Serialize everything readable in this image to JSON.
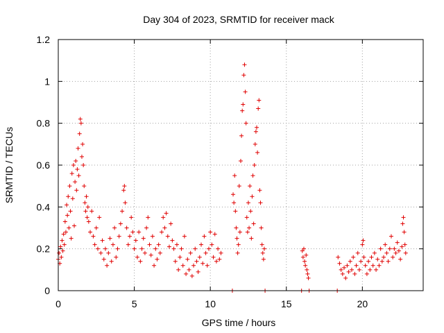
{
  "chart_data": {
    "type": "scatter",
    "title": "Day 304 of 2023, SRMTID for receiver mack",
    "xlabel": "GPS time / hours",
    "ylabel": "SRMTID / TECUs",
    "xlim": [
      0,
      24
    ],
    "ylim": [
      0,
      1.2
    ],
    "xticks": [
      0,
      5,
      10,
      15,
      20
    ],
    "yticks": [
      0,
      0.2,
      0.4,
      0.6,
      0.8,
      1,
      1.2
    ],
    "xtick_labels": [
      "0",
      "5",
      "10",
      "15",
      "20"
    ],
    "ytick_labels": [
      "0",
      "0.2",
      "0.4",
      "0.6",
      "0.8",
      "1",
      "1.2"
    ],
    "grid": true,
    "marker": "+",
    "color": "#e00000",
    "series": [
      {
        "name": "SRMTID",
        "points": [
          [
            0.0,
            0.15
          ],
          [
            0.05,
            0.18
          ],
          [
            0.1,
            0.13
          ],
          [
            0.15,
            0.21
          ],
          [
            0.2,
            0.16
          ],
          [
            0.25,
            0.24
          ],
          [
            0.3,
            0.19
          ],
          [
            0.35,
            0.27
          ],
          [
            0.4,
            0.22
          ],
          [
            0.45,
            0.33
          ],
          [
            0.5,
            0.28
          ],
          [
            0.55,
            0.41
          ],
          [
            0.6,
            0.36
          ],
          [
            0.65,
            0.45
          ],
          [
            0.7,
            0.3
          ],
          [
            0.75,
            0.5
          ],
          [
            0.8,
            0.38
          ],
          [
            0.85,
            0.25
          ],
          [
            0.9,
            0.56
          ],
          [
            0.95,
            0.44
          ],
          [
            1.0,
            0.6
          ],
          [
            1.05,
            0.31
          ],
          [
            1.1,
            0.52
          ],
          [
            1.15,
            0.62
          ],
          [
            1.2,
            0.48
          ],
          [
            1.25,
            0.58
          ],
          [
            1.3,
            0.68
          ],
          [
            1.35,
            0.55
          ],
          [
            1.4,
            0.75
          ],
          [
            1.45,
            0.82
          ],
          [
            1.5,
            0.8
          ],
          [
            1.55,
            0.64
          ],
          [
            1.6,
            0.7
          ],
          [
            1.65,
            0.6
          ],
          [
            1.7,
            0.5
          ],
          [
            1.75,
            0.42
          ],
          [
            1.8,
            0.38
          ],
          [
            1.85,
            0.45
          ],
          [
            1.9,
            0.35
          ],
          [
            1.95,
            0.4
          ],
          [
            2.0,
            0.33
          ],
          [
            2.1,
            0.28
          ],
          [
            2.2,
            0.38
          ],
          [
            2.3,
            0.26
          ],
          [
            2.4,
            0.22
          ],
          [
            2.5,
            0.3
          ],
          [
            2.6,
            0.2
          ],
          [
            2.7,
            0.35
          ],
          [
            2.8,
            0.18
          ],
          [
            2.9,
            0.24
          ],
          [
            3.0,
            0.15
          ],
          [
            3.1,
            0.2
          ],
          [
            3.2,
            0.12
          ],
          [
            3.3,
            0.18
          ],
          [
            3.4,
            0.25
          ],
          [
            3.5,
            0.14
          ],
          [
            3.6,
            0.22
          ],
          [
            3.7,
            0.3
          ],
          [
            3.8,
            0.16
          ],
          [
            3.9,
            0.2
          ],
          [
            4.0,
            0.26
          ],
          [
            4.1,
            0.32
          ],
          [
            4.2,
            0.38
          ],
          [
            4.3,
            0.48
          ],
          [
            4.35,
            0.5
          ],
          [
            4.4,
            0.42
          ],
          [
            4.5,
            0.3
          ],
          [
            4.6,
            0.22
          ],
          [
            4.7,
            0.26
          ],
          [
            4.8,
            0.35
          ],
          [
            4.9,
            0.28
          ],
          [
            5.0,
            0.2
          ],
          [
            5.1,
            0.24
          ],
          [
            5.2,
            0.16
          ],
          [
            5.3,
            0.28
          ],
          [
            5.4,
            0.14
          ],
          [
            5.5,
            0.2
          ],
          [
            5.6,
            0.25
          ],
          [
            5.7,
            0.18
          ],
          [
            5.8,
            0.3
          ],
          [
            5.9,
            0.35
          ],
          [
            6.0,
            0.22
          ],
          [
            6.1,
            0.17
          ],
          [
            6.2,
            0.26
          ],
          [
            6.3,
            0.12
          ],
          [
            6.4,
            0.2
          ],
          [
            6.5,
            0.15
          ],
          [
            6.6,
            0.22
          ],
          [
            6.7,
            0.18
          ],
          [
            6.8,
            0.28
          ],
          [
            6.9,
            0.35
          ],
          [
            7.0,
            0.3
          ],
          [
            7.1,
            0.37
          ],
          [
            7.2,
            0.26
          ],
          [
            7.3,
            0.21
          ],
          [
            7.4,
            0.32
          ],
          [
            7.5,
            0.24
          ],
          [
            7.6,
            0.2
          ],
          [
            7.7,
            0.14
          ],
          [
            7.8,
            0.22
          ],
          [
            7.9,
            0.1
          ],
          [
            8.0,
            0.16
          ],
          [
            8.1,
            0.2
          ],
          [
            8.2,
            0.12
          ],
          [
            8.3,
            0.26
          ],
          [
            8.4,
            0.08
          ],
          [
            8.5,
            0.15
          ],
          [
            8.6,
            0.1
          ],
          [
            8.7,
            0.18
          ],
          [
            8.8,
            0.07
          ],
          [
            8.9,
            0.12
          ],
          [
            9.0,
            0.2
          ],
          [
            9.1,
            0.14
          ],
          [
            9.2,
            0.09
          ],
          [
            9.3,
            0.16
          ],
          [
            9.4,
            0.22
          ],
          [
            9.5,
            0.13
          ],
          [
            9.6,
            0.26
          ],
          [
            9.7,
            0.18
          ],
          [
            9.8,
            0.12
          ],
          [
            9.9,
            0.2
          ],
          [
            10.0,
            0.28
          ],
          [
            10.1,
            0.22
          ],
          [
            10.2,
            0.16
          ],
          [
            10.3,
            0.27
          ],
          [
            10.4,
            0.14
          ],
          [
            10.5,
            0.2
          ],
          [
            10.6,
            0.15
          ],
          [
            10.7,
            0.18
          ],
          [
            11.45,
            0.0
          ],
          [
            11.5,
            0.46
          ],
          [
            11.55,
            0.42
          ],
          [
            11.6,
            0.55
          ],
          [
            11.65,
            0.38
          ],
          [
            11.7,
            0.3
          ],
          [
            11.75,
            0.25
          ],
          [
            11.8,
            0.18
          ],
          [
            11.85,
            0.22
          ],
          [
            11.9,
            0.5
          ],
          [
            11.95,
            0.28
          ],
          [
            12.0,
            0.62
          ],
          [
            12.05,
            0.74
          ],
          [
            12.1,
            0.86
          ],
          [
            12.15,
            0.89
          ],
          [
            12.2,
            1.03
          ],
          [
            12.25,
            1.08
          ],
          [
            12.3,
            0.95
          ],
          [
            12.35,
            0.8
          ],
          [
            12.4,
            0.35
          ],
          [
            12.45,
            0.28
          ],
          [
            12.5,
            0.42
          ],
          [
            12.55,
            0.3
          ],
          [
            12.6,
            0.5
          ],
          [
            12.65,
            0.38
          ],
          [
            12.7,
            0.25
          ],
          [
            12.75,
            0.45
          ],
          [
            12.8,
            0.55
          ],
          [
            12.85,
            0.32
          ],
          [
            12.9,
            0.6
          ],
          [
            12.95,
            0.7
          ],
          [
            13.0,
            0.76
          ],
          [
            13.05,
            0.78
          ],
          [
            13.1,
            0.66
          ],
          [
            13.15,
            0.87
          ],
          [
            13.2,
            0.91
          ],
          [
            13.25,
            0.48
          ],
          [
            13.3,
            0.42
          ],
          [
            13.35,
            0.3
          ],
          [
            13.4,
            0.22
          ],
          [
            13.45,
            0.18
          ],
          [
            13.5,
            0.15
          ],
          [
            13.55,
            0.2
          ],
          [
            13.6,
            0.0
          ],
          [
            16.0,
            0.0
          ],
          [
            16.05,
            0.19
          ],
          [
            16.1,
            0.16
          ],
          [
            16.15,
            0.2
          ],
          [
            16.2,
            0.14
          ],
          [
            16.25,
            0.12
          ],
          [
            16.3,
            0.17
          ],
          [
            16.35,
            0.1
          ],
          [
            16.4,
            0.08
          ],
          [
            16.45,
            0.06
          ],
          [
            16.5,
            0.0
          ],
          [
            18.35,
            0.0
          ],
          [
            18.4,
            0.16
          ],
          [
            18.5,
            0.13
          ],
          [
            18.6,
            0.1
          ],
          [
            18.7,
            0.08
          ],
          [
            18.8,
            0.11
          ],
          [
            18.9,
            0.06
          ],
          [
            19.0,
            0.12
          ],
          [
            19.1,
            0.09
          ],
          [
            19.2,
            0.14
          ],
          [
            19.3,
            0.1
          ],
          [
            19.4,
            0.16
          ],
          [
            19.5,
            0.08
          ],
          [
            19.6,
            0.12
          ],
          [
            19.7,
            0.18
          ],
          [
            19.8,
            0.1
          ],
          [
            19.9,
            0.14
          ],
          [
            20.0,
            0.22
          ],
          [
            20.05,
            0.24
          ],
          [
            20.1,
            0.16
          ],
          [
            20.2,
            0.12
          ],
          [
            20.3,
            0.08
          ],
          [
            20.4,
            0.14
          ],
          [
            20.5,
            0.1
          ],
          [
            20.6,
            0.16
          ],
          [
            20.7,
            0.12
          ],
          [
            20.8,
            0.18
          ],
          [
            20.9,
            0.1
          ],
          [
            21.0,
            0.15
          ],
          [
            21.1,
            0.12
          ],
          [
            21.2,
            0.2
          ],
          [
            21.3,
            0.14
          ],
          [
            21.4,
            0.16
          ],
          [
            21.5,
            0.22
          ],
          [
            21.6,
            0.18
          ],
          [
            21.7,
            0.14
          ],
          [
            21.8,
            0.2
          ],
          [
            21.9,
            0.26
          ],
          [
            22.0,
            0.16
          ],
          [
            22.1,
            0.2
          ],
          [
            22.2,
            0.18
          ],
          [
            22.3,
            0.23
          ],
          [
            22.4,
            0.19
          ],
          [
            22.5,
            0.15
          ],
          [
            22.6,
            0.21
          ],
          [
            22.65,
            0.32
          ],
          [
            22.7,
            0.35
          ],
          [
            22.75,
            0.28
          ],
          [
            22.8,
            0.22
          ],
          [
            22.85,
            0.18
          ]
        ]
      }
    ]
  }
}
